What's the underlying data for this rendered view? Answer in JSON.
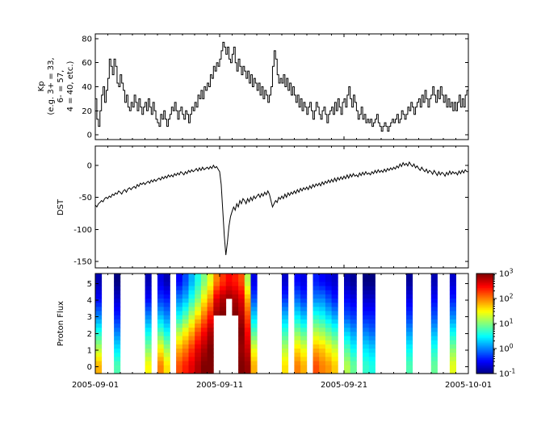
{
  "figure": {
    "background": "#ffffff",
    "axis_color": "#000000",
    "line_color": "#000000",
    "x_axis": {
      "tick_positions_days": [
        0,
        10,
        20,
        30
      ],
      "tick_labels": [
        "2005-09-01",
        "2005-09-11",
        "2005-09-21",
        "2005-10-01"
      ],
      "minor_tick_interval_days": 1,
      "range_days": [
        0,
        30
      ]
    },
    "panels": {
      "kp": {
        "ylabel": "Kp\n(e.g. 3+ = 33,\n6- = 57,\n4 = 40, etc.)",
        "yticks": [
          0,
          20,
          40,
          60,
          80
        ],
        "ylim": [
          -4,
          84
        ]
      },
      "dst": {
        "ylabel": "DST",
        "yticks": [
          0,
          -50,
          -100,
          -150
        ],
        "ylim": [
          -160,
          30
        ]
      },
      "proton": {
        "ylabel": "Proton Flux",
        "yticks": [
          0,
          1,
          2,
          3,
          4,
          5
        ],
        "ylim": [
          -0.4,
          5.6
        ]
      }
    },
    "colorbar": {
      "colormap": "jet",
      "range_log10": [
        -1,
        3
      ],
      "tick_values": [
        3,
        2,
        1,
        0,
        -1
      ],
      "tick_labels": [
        "10^3",
        "10^2",
        "10^1",
        "10^0",
        "10^-1"
      ]
    }
  },
  "chart_data": [
    {
      "type": "line",
      "name": "kp-index",
      "title": "Kp",
      "ylabel": "Kp (e.g. 3+ = 33, 6- = 57, 4 = 40, etc.)",
      "draw_style": "steps-post",
      "x_start": "2005-09-01",
      "x_end": "2005-10-01",
      "cadence_hours": 3,
      "ylim": [
        -4,
        84
      ],
      "yticks": [
        0,
        20,
        40,
        60,
        80
      ],
      "values": [
        30,
        13,
        7,
        20,
        33,
        40,
        27,
        37,
        47,
        63,
        57,
        50,
        63,
        57,
        43,
        40,
        50,
        43,
        37,
        27,
        33,
        23,
        20,
        27,
        23,
        33,
        27,
        20,
        30,
        23,
        17,
        23,
        27,
        20,
        30,
        23,
        17,
        27,
        20,
        13,
        10,
        7,
        17,
        13,
        20,
        13,
        7,
        13,
        17,
        23,
        20,
        27,
        20,
        13,
        20,
        23,
        17,
        13,
        20,
        17,
        10,
        17,
        23,
        20,
        27,
        23,
        33,
        30,
        37,
        30,
        40,
        37,
        43,
        40,
        50,
        47,
        57,
        53,
        60,
        57,
        63,
        70,
        77,
        73,
        67,
        73,
        63,
        60,
        67,
        73,
        60,
        53,
        63,
        57,
        50,
        57,
        53,
        47,
        53,
        43,
        50,
        40,
        47,
        43,
        37,
        43,
        33,
        40,
        30,
        37,
        33,
        27,
        33,
        40,
        57,
        70,
        63,
        50,
        43,
        47,
        43,
        50,
        40,
        47,
        37,
        43,
        33,
        40,
        33,
        27,
        33,
        23,
        30,
        20,
        27,
        23,
        17,
        23,
        27,
        20,
        13,
        20,
        27,
        23,
        17,
        13,
        20,
        23,
        17,
        10,
        17,
        20,
        23,
        17,
        27,
        20,
        30,
        23,
        17,
        27,
        30,
        23,
        33,
        40,
        30,
        23,
        33,
        27,
        20,
        13,
        17,
        23,
        13,
        17,
        10,
        13,
        10,
        13,
        7,
        10,
        13,
        17,
        10,
        7,
        3,
        7,
        10,
        7,
        3,
        7,
        10,
        13,
        10,
        13,
        17,
        10,
        13,
        20,
        17,
        13,
        17,
        23,
        20,
        27,
        23,
        17,
        23,
        27,
        30,
        23,
        33,
        27,
        37,
        30,
        23,
        30,
        33,
        40,
        33,
        27,
        37,
        30,
        40,
        33,
        27,
        33,
        23,
        30,
        23,
        27,
        20,
        27,
        20,
        27,
        33,
        23,
        30,
        23,
        33,
        37
      ]
    },
    {
      "type": "line",
      "name": "dst-index",
      "title": "DST",
      "x_start": "2005-09-01",
      "x_end": "2005-10-01",
      "cadence_hours": 3,
      "ylim": [
        -160,
        30
      ],
      "yticks": [
        0,
        -50,
        -100,
        -150
      ],
      "values": [
        -62,
        -65,
        -60,
        -58,
        -55,
        -57,
        -52,
        -50,
        -52,
        -48,
        -50,
        -45,
        -47,
        -43,
        -45,
        -40,
        -42,
        -45,
        -40,
        -38,
        -42,
        -37,
        -35,
        -38,
        -35,
        -33,
        -36,
        -30,
        -33,
        -28,
        -30,
        -27,
        -30,
        -27,
        -25,
        -28,
        -23,
        -26,
        -22,
        -25,
        -22,
        -20,
        -23,
        -18,
        -21,
        -17,
        -20,
        -15,
        -18,
        -15,
        -18,
        -13,
        -16,
        -12,
        -15,
        -10,
        -12,
        -15,
        -10,
        -13,
        -8,
        -11,
        -7,
        -10,
        -8,
        -5,
        -9,
        -4,
        -8,
        -3,
        -7,
        -5,
        -3,
        -6,
        -2,
        -5,
        0,
        -4,
        -2,
        -6,
        -10,
        -30,
        -70,
        -110,
        -140,
        -120,
        -95,
        -80,
        -72,
        -65,
        -70,
        -60,
        -65,
        -55,
        -60,
        -52,
        -55,
        -60,
        -52,
        -57,
        -50,
        -55,
        -48,
        -52,
        -48,
        -45,
        -50,
        -44,
        -48,
        -42,
        -46,
        -40,
        -45,
        -55,
        -65,
        -60,
        -55,
        -58,
        -50,
        -53,
        -48,
        -52,
        -45,
        -50,
        -43,
        -47,
        -42,
        -45,
        -40,
        -44,
        -38,
        -42,
        -36,
        -40,
        -35,
        -38,
        -34,
        -38,
        -32,
        -36,
        -30,
        -34,
        -29,
        -32,
        -28,
        -32,
        -26,
        -30,
        -25,
        -28,
        -23,
        -27,
        -22,
        -26,
        -20,
        -25,
        -19,
        -23,
        -18,
        -22,
        -17,
        -21,
        -15,
        -20,
        -14,
        -18,
        -13,
        -17,
        -15,
        -18,
        -12,
        -16,
        -11,
        -15,
        -10,
        -14,
        -12,
        -15,
        -10,
        -13,
        -8,
        -12,
        -7,
        -11,
        -8,
        -11,
        -6,
        -10,
        -5,
        -8,
        -4,
        -7,
        -3,
        -6,
        -1,
        -4,
        2,
        -2,
        4,
        0,
        3,
        -1,
        5,
        1,
        -2,
        2,
        -4,
        -1,
        -5,
        -8,
        -3,
        -7,
        -10,
        -6,
        -12,
        -8,
        -10,
        -14,
        -8,
        -12,
        -16,
        -10,
        -15,
        -11,
        -13,
        -17,
        -11,
        -15,
        -9,
        -14,
        -10,
        -13,
        -11,
        -15,
        -9,
        -13,
        -8,
        -12,
        -7,
        -10
      ]
    },
    {
      "type": "heatmap",
      "name": "proton-flux",
      "title": "Proton Flux",
      "colormap": "jet",
      "value_scale": "log10",
      "value_range": [
        -1,
        3
      ],
      "x_start": "2005-09-01",
      "x_end": "2005-10-01",
      "column_hours": 12,
      "rows": 6,
      "row_range": [
        0,
        5
      ],
      "gaps_are_white": true,
      "grid": [
        [
          1.8,
          1.2,
          0.6,
          0.0,
          -0.5,
          -0.8
        ],
        null,
        null,
        [
          0.8,
          0.4,
          0.0,
          -0.4,
          -0.7,
          -1.0
        ],
        null,
        null,
        null,
        null,
        [
          1.5,
          1.0,
          0.5,
          0.0,
          -0.5,
          -0.8
        ],
        null,
        [
          2.0,
          1.5,
          0.8,
          0.2,
          -0.3,
          -0.6
        ],
        [
          1.6,
          1.1,
          0.5,
          0.0,
          -0.4,
          -0.8
        ],
        null,
        [
          2.2,
          1.8,
          1.2,
          0.5,
          0.0,
          -0.5
        ],
        [
          2.4,
          2.0,
          1.5,
          0.8,
          0.2,
          -0.2
        ],
        [
          2.6,
          2.3,
          1.8,
          1.2,
          0.6,
          0.2
        ],
        [
          2.8,
          2.6,
          2.2,
          1.6,
          1.0,
          0.6
        ],
        [
          3.0,
          2.8,
          2.5,
          2.0,
          1.5,
          1.0
        ],
        [
          3.0,
          3.0,
          2.8,
          2.4,
          1.9,
          1.4
        ],
        [
          null,
          null,
          null,
          2.9,
          2.6,
          2.0
        ],
        [
          null,
          null,
          null,
          3.0,
          2.8,
          2.3
        ],
        [
          null,
          null,
          null,
          null,
          2.9,
          2.5
        ],
        [
          null,
          null,
          null,
          3.0,
          2.8,
          2.4
        ],
        [
          3.0,
          2.9,
          3.0,
          2.8,
          2.6,
          2.2
        ],
        [
          2.9,
          2.7,
          2.5,
          2.2,
          1.8,
          1.2
        ],
        [
          1.8,
          1.4,
          0.8,
          0.3,
          -0.2,
          -0.6
        ],
        null,
        null,
        null,
        null,
        [
          1.6,
          1.2,
          0.7,
          0.2,
          -0.3,
          -0.7
        ],
        null,
        [
          2.0,
          1.6,
          1.0,
          0.4,
          -0.1,
          -0.5
        ],
        [
          1.8,
          1.4,
          0.8,
          0.2,
          -0.3,
          -0.6
        ],
        null,
        [
          2.2,
          1.8,
          1.2,
          0.6,
          0.0,
          -0.4
        ],
        [
          2.0,
          1.7,
          1.1,
          0.5,
          0.0,
          -0.5
        ],
        [
          1.9,
          1.5,
          0.9,
          0.3,
          -0.2,
          -0.6
        ],
        [
          1.7,
          1.3,
          0.7,
          0.1,
          -0.4,
          -0.7
        ],
        null,
        [
          1.2,
          0.8,
          0.3,
          -0.2,
          -0.5,
          -0.8
        ],
        [
          0.9,
          0.5,
          0.1,
          -0.3,
          -0.6,
          -0.9
        ],
        null,
        [
          0.7,
          0.4,
          0.0,
          -0.4,
          -0.7,
          -1.0
        ],
        [
          0.6,
          0.3,
          -0.1,
          -0.4,
          -0.7,
          -1.0
        ],
        null,
        null,
        null,
        null,
        null,
        [
          0.8,
          0.5,
          0.1,
          -0.3,
          -0.6,
          -0.9
        ],
        null,
        null,
        null,
        [
          0.9,
          0.6,
          0.2,
          -0.2,
          -0.5,
          -0.8
        ],
        null,
        null,
        [
          1.4,
          1.0,
          0.5,
          0.0,
          -0.4,
          -0.7
        ],
        null,
        null
      ]
    }
  ]
}
